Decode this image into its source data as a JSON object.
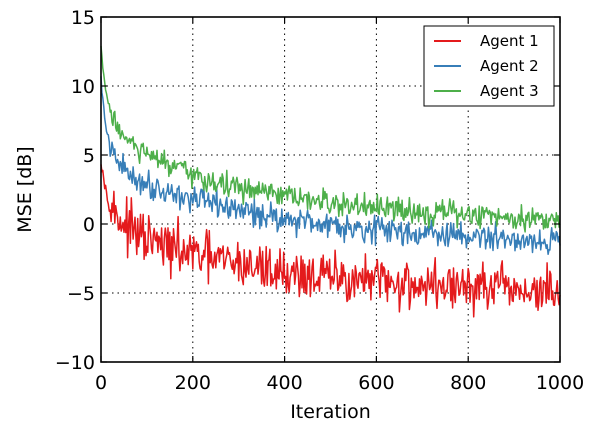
{
  "chart_data": {
    "type": "line",
    "title": "",
    "xlabel": "Iteration",
    "ylabel": "MSE [dB]",
    "xlim": [
      0,
      1000
    ],
    "ylim": [
      -10,
      15
    ],
    "xticks": [
      0,
      200,
      400,
      600,
      800,
      1000
    ],
    "yticks": [
      -10,
      -5,
      0,
      5,
      10,
      15
    ],
    "xtick_labels": [
      "0",
      "200",
      "400",
      "600",
      "800",
      "1000"
    ],
    "ytick_labels": [
      "−10",
      "−5",
      "0",
      "5",
      "10",
      "15"
    ],
    "grid": true,
    "legend_position": "top-right",
    "x": [
      0,
      10,
      25,
      50,
      75,
      100,
      150,
      200,
      250,
      300,
      350,
      400,
      450,
      500,
      550,
      600,
      650,
      700,
      750,
      800,
      850,
      900,
      950,
      1000
    ],
    "series": [
      {
        "name": "Agent 1",
        "color": "#e41a1c",
        "values": [
          4.8,
          2.5,
          1.0,
          0.0,
          -0.7,
          -1.2,
          -1.8,
          -2.2,
          -2.6,
          -2.9,
          -3.2,
          -3.5,
          -3.7,
          -3.9,
          -4.0,
          -4.2,
          -4.3,
          -4.4,
          -4.5,
          -4.6,
          -4.7,
          -4.8,
          -4.9,
          -5.0
        ],
        "noise": 1.1
      },
      {
        "name": "Agent 2",
        "color": "#377eb8",
        "values": [
          10.5,
          7.0,
          5.0,
          4.0,
          3.3,
          2.9,
          2.3,
          1.8,
          1.4,
          1.0,
          0.7,
          0.4,
          0.2,
          0.0,
          -0.2,
          -0.4,
          -0.5,
          -0.7,
          -0.8,
          -0.9,
          -1.0,
          -1.1,
          -1.2,
          -1.3
        ],
        "noise": 0.6
      },
      {
        "name": "Agent 3",
        "color": "#4daf4a",
        "values": [
          12.8,
          9.5,
          7.8,
          6.3,
          5.5,
          5.0,
          4.2,
          3.5,
          3.0,
          2.6,
          2.3,
          2.0,
          1.7,
          1.5,
          1.3,
          1.1,
          1.0,
          0.9,
          0.8,
          0.7,
          0.6,
          0.5,
          0.4,
          0.4
        ],
        "noise": 0.55
      }
    ]
  }
}
